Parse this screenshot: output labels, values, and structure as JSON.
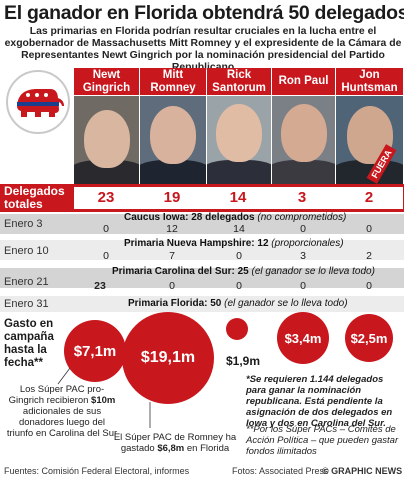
{
  "title": "El ganador en Florida obtendrá 50 delegados",
  "subtitle": "Las primarias en Florida podrían resultar cruciales en la lucha entre el exgobernador de Massachusetts Mitt Romney y el expresidente de la Cámara de Representantes Newt Gingrich por la nominación presidencial del Partido Republicano",
  "candidates": [
    {
      "name": "Newt Gingrich",
      "delegates": "23",
      "enero3": "0",
      "enero10": "0",
      "enero21": "23",
      "gasto": "$7,1m"
    },
    {
      "name": "Mitt Romney",
      "delegates": "19",
      "enero3": "12",
      "enero10": "7",
      "enero21": "0",
      "gasto": "$19,1m"
    },
    {
      "name": "Rick Santorum",
      "delegates": "14",
      "enero3": "14",
      "enero10": "0",
      "enero21": "0",
      "gasto": "$1,9m"
    },
    {
      "name": "Ron Paul",
      "delegates": "3",
      "enero3": "0",
      "enero10": "3",
      "enero21": "0",
      "gasto": "$3,4m"
    },
    {
      "name": "Jon Huntsman",
      "delegates": "2",
      "enero3": "0",
      "enero10": "2",
      "enero21": "0",
      "gasto": "$2,5m"
    }
  ],
  "fuera_label": "FUERA",
  "totals_label": "Delegados totales",
  "rows": [
    {
      "date": "Enero 3",
      "event": "Caucus Iowa: 28 delegados ",
      "detail": "(no comprometidos)"
    },
    {
      "date": "Enero 10",
      "event": "Primaria Nueva Hampshire: 12 ",
      "detail": "(proporcionales)"
    },
    {
      "date": "Enero 21",
      "event": "Primaria Carolina del Sur: 25 ",
      "detail": "(el ganador se lo lleva todo)"
    },
    {
      "date": "Enero 31",
      "event": "Primaria Florida: 50 ",
      "detail": "(el ganador se lo lleva todo)"
    }
  ],
  "gasto_label": "Gasto en campaña hasta la fecha**",
  "note_gingrich_pre": "Los Súper PAC pro-Gingrich recibieron ",
  "note_gingrich_bold": "$10m",
  "note_gingrich_post": " adicionales de sus donadores luego del triunfo en Carolina del Sur",
  "note_romney_pre": "El Súper PAC de Romney ha gastado ",
  "note_romney_bold": "$6,8m",
  "note_romney_post": " en Florida",
  "footnote1": "*Se requieren 1.144 delegados para ganar la nominación republicana. Está pendiente la asignación de dos delegados en Iowa y dos en Carolina del Sur.",
  "footnote2": "**Por los Súper PACs – Comités de Acción Política – que pueden gastar fondos ilimitados",
  "sources": "Fuentes: Comisión Federal Electoral, informes",
  "photos": "Fotos: Associated Press",
  "brand": "© GRAPHIC NEWS",
  "colors": {
    "accent": "#c8171d",
    "gray": "#d4d4d4"
  }
}
